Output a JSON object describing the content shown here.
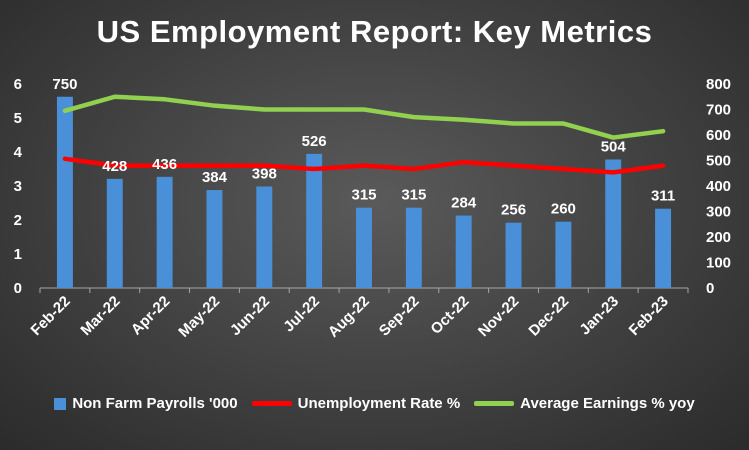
{
  "chart_data": {
    "type": "bar",
    "title": "US Employment Report: Key Metrics",
    "categories": [
      "Feb-22",
      "Mar-22",
      "Apr-22",
      "May-22",
      "Jun-22",
      "Jul-22",
      "Aug-22",
      "Sep-22",
      "Oct-22",
      "Nov-22",
      "Dec-22",
      "Jan-23",
      "Feb-23"
    ],
    "series": [
      {
        "name": "Non Farm Payrolls '000",
        "kind": "bar",
        "axis": "right",
        "color": "#4a90d9",
        "values": [
          750,
          428,
          436,
          384,
          398,
          526,
          315,
          315,
          284,
          256,
          260,
          504,
          311
        ],
        "data_labels": [
          "750",
          "428",
          "436",
          "384",
          "398",
          "526",
          "315",
          "315",
          "284",
          "256",
          "260",
          "504",
          "311"
        ]
      },
      {
        "name": "Unemployment Rate %",
        "kind": "line",
        "axis": "left",
        "color": "#ff0000",
        "values": [
          3.8,
          3.6,
          3.6,
          3.6,
          3.6,
          3.5,
          3.6,
          3.5,
          3.7,
          3.6,
          3.5,
          3.4,
          3.6
        ]
      },
      {
        "name": "Average Earnings % yoy",
        "kind": "line",
        "axis": "right",
        "color": "#92d050",
        "values": [
          695,
          750,
          740,
          715,
          700,
          700,
          700,
          670,
          660,
          645,
          645,
          590,
          615
        ]
      }
    ],
    "y_left": {
      "min": 0,
      "max": 6,
      "ticks": [
        "0",
        "1",
        "2",
        "3",
        "4",
        "5",
        "6"
      ]
    },
    "y_right": {
      "min": 0,
      "max": 800,
      "ticks": [
        "0",
        "100",
        "200",
        "300",
        "400",
        "500",
        "600",
        "700",
        "800"
      ]
    },
    "grid": false,
    "legend_position": "bottom"
  }
}
